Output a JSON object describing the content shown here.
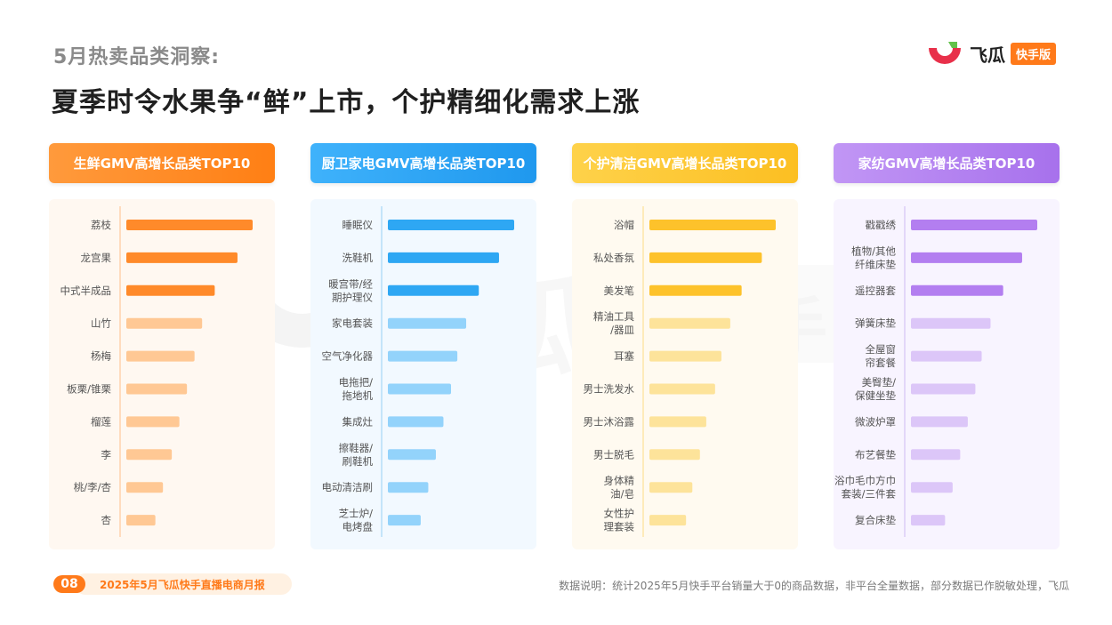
{
  "header": {
    "subtitle": "5月热卖品类洞察:",
    "title": "夏季时令水果争“鲜”上市，个护精细化需求上涨"
  },
  "logo": {
    "name": "飞瓜",
    "badge": "快手版"
  },
  "watermark": {
    "chars": [
      "飞",
      "瓜",
      "快",
      "手",
      "版"
    ]
  },
  "footer": {
    "page_number": "08",
    "report_title": "2025年5月飞瓜快手直播电商月报",
    "note": "数据说明：统计2025年5月快手平台销量大于0的商品数据，非平台全量数据，部分数据已作脱敏处理，飞瓜"
  },
  "chart_data": [
    {
      "type": "bar",
      "orientation": "horizontal",
      "title": "生鲜GMV高增长品类TOP10",
      "colors": {
        "header": "#ff8a25",
        "strong": "#ff8a2a",
        "light": "#ffc894",
        "panel": "#fff8f1",
        "axis": "#ffd3ad"
      },
      "categories": [
        "荔枝",
        "龙宫果",
        "中式半成品",
        "山竹",
        "杨梅",
        "板栗/锥栗",
        "榴莲",
        "李",
        "桃/李/杏",
        "杏"
      ],
      "values": [
        10,
        8.8,
        7,
        6,
        5.4,
        4.8,
        4.2,
        3.6,
        2.9,
        2.3
      ]
    },
    {
      "type": "bar",
      "orientation": "horizontal",
      "title": "厨卫家电GMV高增长品类TOP10",
      "colors": {
        "header": "#2fa6f5",
        "strong": "#2ea7f3",
        "light": "#93d3fb",
        "panel": "#f2f9ff",
        "axis": "#b4def9"
      },
      "categories": [
        "睡眠仪",
        "洗鞋机",
        "暖宫带/经期护理仪",
        "家电套装",
        "空气净化器",
        "电拖把/拖地机",
        "集成灶",
        "擦鞋器/刷鞋机",
        "电动清洁刷",
        "芝士炉/电烤盘"
      ],
      "values": [
        10,
        8.8,
        7.2,
        6.2,
        5.5,
        5,
        4.4,
        3.8,
        3.2,
        2.6
      ]
    },
    {
      "type": "bar",
      "orientation": "horizontal",
      "title": "个护清洁GMV高增长品类TOP10",
      "colors": {
        "header": "#fdc72f",
        "strong": "#fdc22b",
        "light": "#fde39a",
        "panel": "#fffaf0",
        "axis": "#fde6a7"
      },
      "categories": [
        "浴帽",
        "私处香氛",
        "美发笔",
        "精油工具/器皿",
        "耳塞",
        "男士洗发水",
        "男士沐浴露",
        "男士脱毛",
        "身体精油/皂",
        "女性护理套装"
      ],
      "values": [
        10,
        8.9,
        7.3,
        6.4,
        5.7,
        5.2,
        4.5,
        4,
        3.4,
        2.9
      ]
    },
    {
      "type": "bar",
      "orientation": "horizontal",
      "title": "家纺GMV高增长品类TOP10",
      "colors": {
        "header": "#b183f1",
        "strong": "#b37ef0",
        "light": "#dcc6f8",
        "panel": "#f8f4ff",
        "axis": "#dccdf7"
      },
      "categories": [
        "戳戳绣",
        "植物/其他纤维床垫",
        "遥控器套",
        "弹簧床垫",
        "全屋窗帘套餐",
        "美臀垫/保健坐垫",
        "微波炉罩",
        "布艺餐垫",
        "浴巾毛巾方巾套装/三件套",
        "复合床垫"
      ],
      "values": [
        10,
        8.8,
        7.3,
        6.3,
        5.6,
        5.1,
        4.5,
        3.9,
        3.3,
        2.7
      ]
    }
  ]
}
